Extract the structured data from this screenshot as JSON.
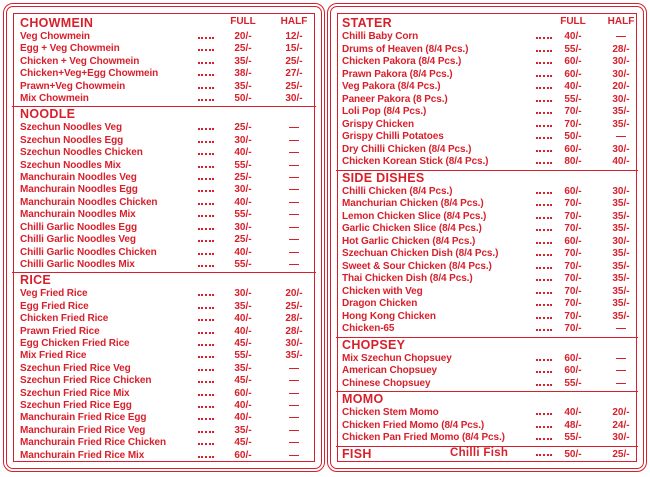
{
  "columns": [
    {
      "sections": [
        {
          "title": "CHOWMEIN",
          "full": "FULL",
          "half": "HALF",
          "items": [
            {
              "name": "Veg Chowmein",
              "full": "20/-",
              "half": "12/-"
            },
            {
              "name": "Egg + Veg Chowmein",
              "full": "25/-",
              "half": "15/-"
            },
            {
              "name": "Chicken + Veg Chowmein",
              "full": "35/-",
              "half": "25/-"
            },
            {
              "name": "Chicken+Veg+Egg Chowmein",
              "full": "38/-",
              "half": "27/-"
            },
            {
              "name": "Prawn+Veg Chowmein",
              "full": "35/-",
              "half": "25/-"
            },
            {
              "name": "Mix Chowmein",
              "full": "50/-",
              "half": "30/-"
            }
          ]
        },
        {
          "title": "NOODLE",
          "items": [
            {
              "name": "Szechun Noodles Veg",
              "full": "25/-",
              "half": "—"
            },
            {
              "name": "Szechun Noodles Egg",
              "full": "30/-",
              "half": "—"
            },
            {
              "name": "Szechun Noodles Chicken",
              "full": "40/-",
              "half": "—"
            },
            {
              "name": "Szechun Noodles Mix",
              "full": "55/-",
              "half": "—"
            },
            {
              "name": "Manchurain Noodles Veg",
              "full": "25/-",
              "half": "—"
            },
            {
              "name": "Manchurain Noodles Egg",
              "full": "30/-",
              "half": "—"
            },
            {
              "name": "Manchurain Noodles Chicken",
              "full": "40/-",
              "half": "—"
            },
            {
              "name": "Manchurain Noodles Mix",
              "full": "55/-",
              "half": "—"
            },
            {
              "name": "Chilli Garlic Noodles Egg",
              "full": "30/-",
              "half": "—"
            },
            {
              "name": "Chilli Garlic Noodles Veg",
              "full": "25/-",
              "half": "—"
            },
            {
              "name": "Chilli Garlic Noodles Chicken",
              "full": "40/-",
              "half": "—"
            },
            {
              "name": "Chilli Garlic Noodles Mix",
              "full": "55/-",
              "half": "—"
            }
          ]
        },
        {
          "title": "RICE",
          "items": [
            {
              "name": "Veg Fried Rice",
              "full": "30/-",
              "half": "20/-"
            },
            {
              "name": "Egg Fried Rice",
              "full": "35/-",
              "half": "25/-"
            },
            {
              "name": "Chicken Fried Rice",
              "full": "40/-",
              "half": "28/-"
            },
            {
              "name": "Prawn Fried Rice",
              "full": "40/-",
              "half": "28/-"
            },
            {
              "name": "Egg Chicken Fried Rice",
              "full": "45/-",
              "half": "30/-"
            },
            {
              "name": "Mix Fried Rice",
              "full": "55/-",
              "half": "35/-"
            },
            {
              "name": "Szechun Fried Rice Veg",
              "full": "35/-",
              "half": "—"
            },
            {
              "name": "Szechun Fried Rice Chicken",
              "full": "45/-",
              "half": "—"
            },
            {
              "name": "Szechun Fried Rice Mix",
              "full": "60/-",
              "half": "—"
            },
            {
              "name": "Szechun Fried Rice Egg",
              "full": "40/-",
              "half": "—"
            },
            {
              "name": "Manchurain Fried Rice Egg",
              "full": "40/-",
              "half": "—"
            },
            {
              "name": "Manchurain Fried Rice Veg",
              "full": "35/-",
              "half": "—"
            },
            {
              "name": "Manchurain Fried Rice Chicken",
              "full": "45/-",
              "half": "—"
            },
            {
              "name": "Manchurain Fried Rice Mix",
              "full": "60/-",
              "half": "—"
            }
          ]
        }
      ]
    },
    {
      "sections": [
        {
          "title": "STATER",
          "full": "FULL",
          "half": "HALF",
          "items": [
            {
              "name": "Chilli Baby Corn",
              "full": "40/-",
              "half": "—"
            },
            {
              "name": "Drums of Heaven (8/4 Pcs.)",
              "full": "55/-",
              "half": "28/-"
            },
            {
              "name": "Chicken Pakora (8/4 Pcs.)",
              "full": "60/-",
              "half": "30/-"
            },
            {
              "name": "Prawn Pakora (8/4 Pcs.)",
              "full": "60/-",
              "half": "30/-"
            },
            {
              "name": "Veg Pakora (8/4 Pcs.)",
              "full": "40/-",
              "half": "20/-"
            },
            {
              "name": "Paneer Pakora (8 Pcs.)",
              "full": "55/-",
              "half": "30/-"
            },
            {
              "name": "Loli Pop (8/4 Pcs.)",
              "full": "70/-",
              "half": "35/-"
            },
            {
              "name": "Grispy Chicken",
              "full": "70/-",
              "half": "35/-"
            },
            {
              "name": "Grispy Chilli Potatoes",
              "full": "50/-",
              "half": "—"
            },
            {
              "name": "Dry Chilli Chicken (8/4 Pcs.)",
              "full": "60/-",
              "half": "30/-"
            },
            {
              "name": "Chicken Korean Stick (8/4 Pcs.)",
              "full": "80/-",
              "half": "40/-"
            }
          ]
        },
        {
          "title": "SIDE DISHES",
          "items": [
            {
              "name": "Chilli Chicken (8/4 Pcs.)",
              "full": "60/-",
              "half": "30/-"
            },
            {
              "name": "Manchurian Chicken (8/4 Pcs.)",
              "full": "70/-",
              "half": "35/-"
            },
            {
              "name": "Lemon Chicken Slice (8/4 Pcs.)",
              "full": "70/-",
              "half": "35/-"
            },
            {
              "name": "Garlic Chicken Slice (8/4 Pcs.)",
              "full": "70/-",
              "half": "35/-"
            },
            {
              "name": "Hot Garlic Chicken (8/4 Pcs.)",
              "full": "60/-",
              "half": "30/-"
            },
            {
              "name": "Szechuan Chicken Dish (8/4 Pcs.)",
              "full": "70/-",
              "half": "35/-"
            },
            {
              "name": "Sweet & Sour Chicken (8/4 Pcs.)",
              "full": "70/-",
              "half": "35/-"
            },
            {
              "name": "Thai Chicken Dish (8/4 Pcs.)",
              "full": "70/-",
              "half": "35/-"
            },
            {
              "name": "Chicken with Veg",
              "full": "70/-",
              "half": "35/-"
            },
            {
              "name": "Dragon Chicken",
              "full": "70/-",
              "half": "35/-"
            },
            {
              "name": "Hong Kong Chicken",
              "full": "70/-",
              "half": "35/-"
            },
            {
              "name": "Chicken-65",
              "full": "70/-",
              "half": "—"
            }
          ]
        },
        {
          "title": "CHOPSEY",
          "items": [
            {
              "name": "Mix Szechun Chopsuey",
              "full": "60/-",
              "half": "—"
            },
            {
              "name": "American Chopsuey",
              "full": "60/-",
              "half": "—"
            },
            {
              "name": "Chinese Chopsuey",
              "full": "55/-",
              "half": "—"
            }
          ]
        },
        {
          "title": "MOMO",
          "items": [
            {
              "name": "Chicken Stem Momo",
              "full": "40/-",
              "half": "20/-"
            },
            {
              "name": "Chicken Fried Momo (8/4 Pcs.)",
              "full": "48/-",
              "half": "24/-"
            },
            {
              "name": "Chicken Pan Fried Momo (8/4 Pcs.)",
              "full": "55/-",
              "half": "30/-"
            }
          ]
        },
        {
          "title": "FISH",
          "items": [
            {
              "name": "Chilli Fish",
              "full": "50/-",
              "half": "25/-"
            }
          ]
        }
      ]
    }
  ]
}
